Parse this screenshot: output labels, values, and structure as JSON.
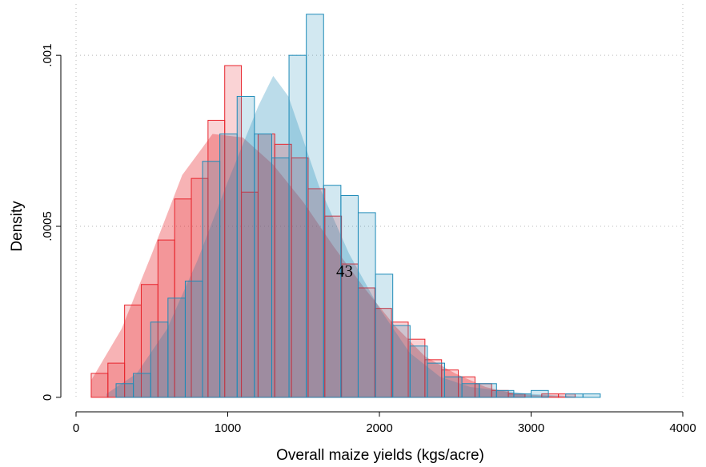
{
  "chart_data": {
    "type": "histogram",
    "xlabel": "Overall maize yields (kgs/acre)",
    "ylabel": "Density",
    "annotation": "43",
    "xlim": [
      0,
      4000
    ],
    "ylim": [
      -4e-05,
      0.00115
    ],
    "xticks": [
      0,
      1000,
      2000,
      3000,
      4000
    ],
    "yticks": [
      0,
      {
        "value": 0.0005,
        "label": ".0005"
      },
      {
        "value": 0.001,
        "label": ".001"
      }
    ],
    "grid": true,
    "series": [
      {
        "color": "#e8242c",
        "bins": [
          100,
          210,
          320,
          430,
          540,
          650,
          760,
          870,
          980,
          1090,
          1200,
          1310,
          1420,
          1530,
          1640,
          1750,
          1860,
          1970,
          2080,
          2190,
          2300,
          2410,
          2520,
          2630,
          2740,
          2850,
          2960,
          3070,
          3180,
          3290
        ],
        "values": [
          7e-05,
          0.0001,
          0.00027,
          0.00033,
          0.00046,
          0.00058,
          0.00064,
          0.00081,
          0.00097,
          0.0006,
          0.00077,
          0.00074,
          0.0007,
          0.00061,
          0.00053,
          0.00039,
          0.00032,
          0.00026,
          0.00022,
          0.00017,
          0.00011,
          8e-05,
          6e-05,
          4e-05,
          2e-05,
          1e-05,
          0,
          1e-05,
          1e-05
        ],
        "kde_x": [
          100,
          300,
          500,
          700,
          900,
          1100,
          1300,
          1500,
          1700,
          1900,
          2100,
          2300,
          2500,
          2700,
          2900,
          3100,
          3300
        ],
        "kde_values": [
          5e-05,
          0.0002,
          0.00042,
          0.00065,
          0.00077,
          0.00076,
          0.00068,
          0.00057,
          0.00044,
          0.00032,
          0.00021,
          0.00012,
          7e-05,
          3e-05,
          1e-05,
          5e-06,
          0
        ]
      },
      {
        "color": "#1e8bb8",
        "bins": [
          264,
          378,
          492,
          606,
          720,
          834,
          948,
          1062,
          1176,
          1290,
          1404,
          1518,
          1632,
          1746,
          1860,
          1974,
          2088,
          2202,
          2316,
          2430,
          2544,
          2658,
          2772,
          2886,
          3000,
          3114,
          3228,
          3342,
          3456
        ],
        "values": [
          4e-05,
          7e-05,
          0.00022,
          0.00029,
          0.00034,
          0.00069,
          0.00077,
          0.00088,
          0.00077,
          0.0007,
          0.001,
          0.00112,
          0.00062,
          0.00059,
          0.00054,
          0.00036,
          0.00021,
          0.00015,
          0.0001,
          6e-05,
          4e-05,
          4e-05,
          2e-05,
          1e-05,
          2e-05,
          0,
          1e-05,
          1e-05
        ],
        "kde_x": [
          200,
          400,
          600,
          800,
          1000,
          1200,
          1300,
          1400,
          1600,
          1800,
          2000,
          2200,
          2400,
          2600,
          2800,
          3000,
          3200,
          3400
        ],
        "kde_values": [
          1e-05,
          7e-05,
          0.0002,
          0.0004,
          0.00063,
          0.00085,
          0.00094,
          0.00088,
          0.00062,
          0.00042,
          0.00026,
          0.00013,
          6e-05,
          3e-05,
          2e-05,
          1e-05,
          5e-06,
          0
        ]
      }
    ]
  }
}
